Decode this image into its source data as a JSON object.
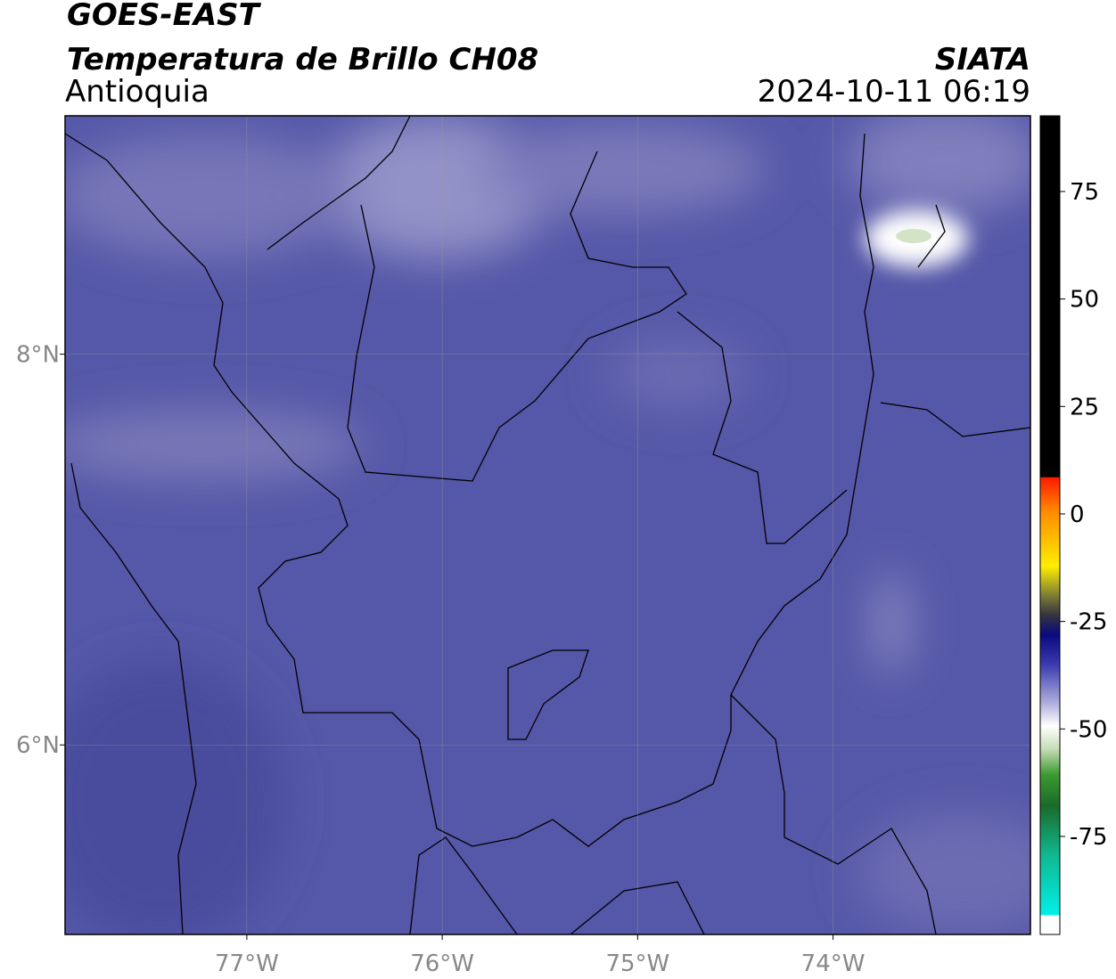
{
  "header": {
    "title": "GOES-EAST",
    "subtitle": "Temperatura de Brillo CH08",
    "region": "Antioquia",
    "source": "SIATA",
    "timestamp": "2024-10-11 06:19"
  },
  "map": {
    "xlim": [
      -77.93,
      -72.99
    ],
    "ylim": [
      5.03,
      9.22
    ],
    "xticks": [
      {
        "value": -77,
        "label": "77°W"
      },
      {
        "value": -76,
        "label": "76°W"
      },
      {
        "value": -75,
        "label": "75°W"
      },
      {
        "value": -74,
        "label": "74°W"
      }
    ],
    "yticks": [
      {
        "value": 6,
        "label": "6°N"
      },
      {
        "value": 8,
        "label": "8°N"
      }
    ],
    "grid": true
  },
  "colorbar": {
    "lim": [
      -97.8,
      92.6
    ],
    "ticks": [
      75,
      50,
      25,
      0,
      -25,
      -50,
      -75
    ]
  }
}
